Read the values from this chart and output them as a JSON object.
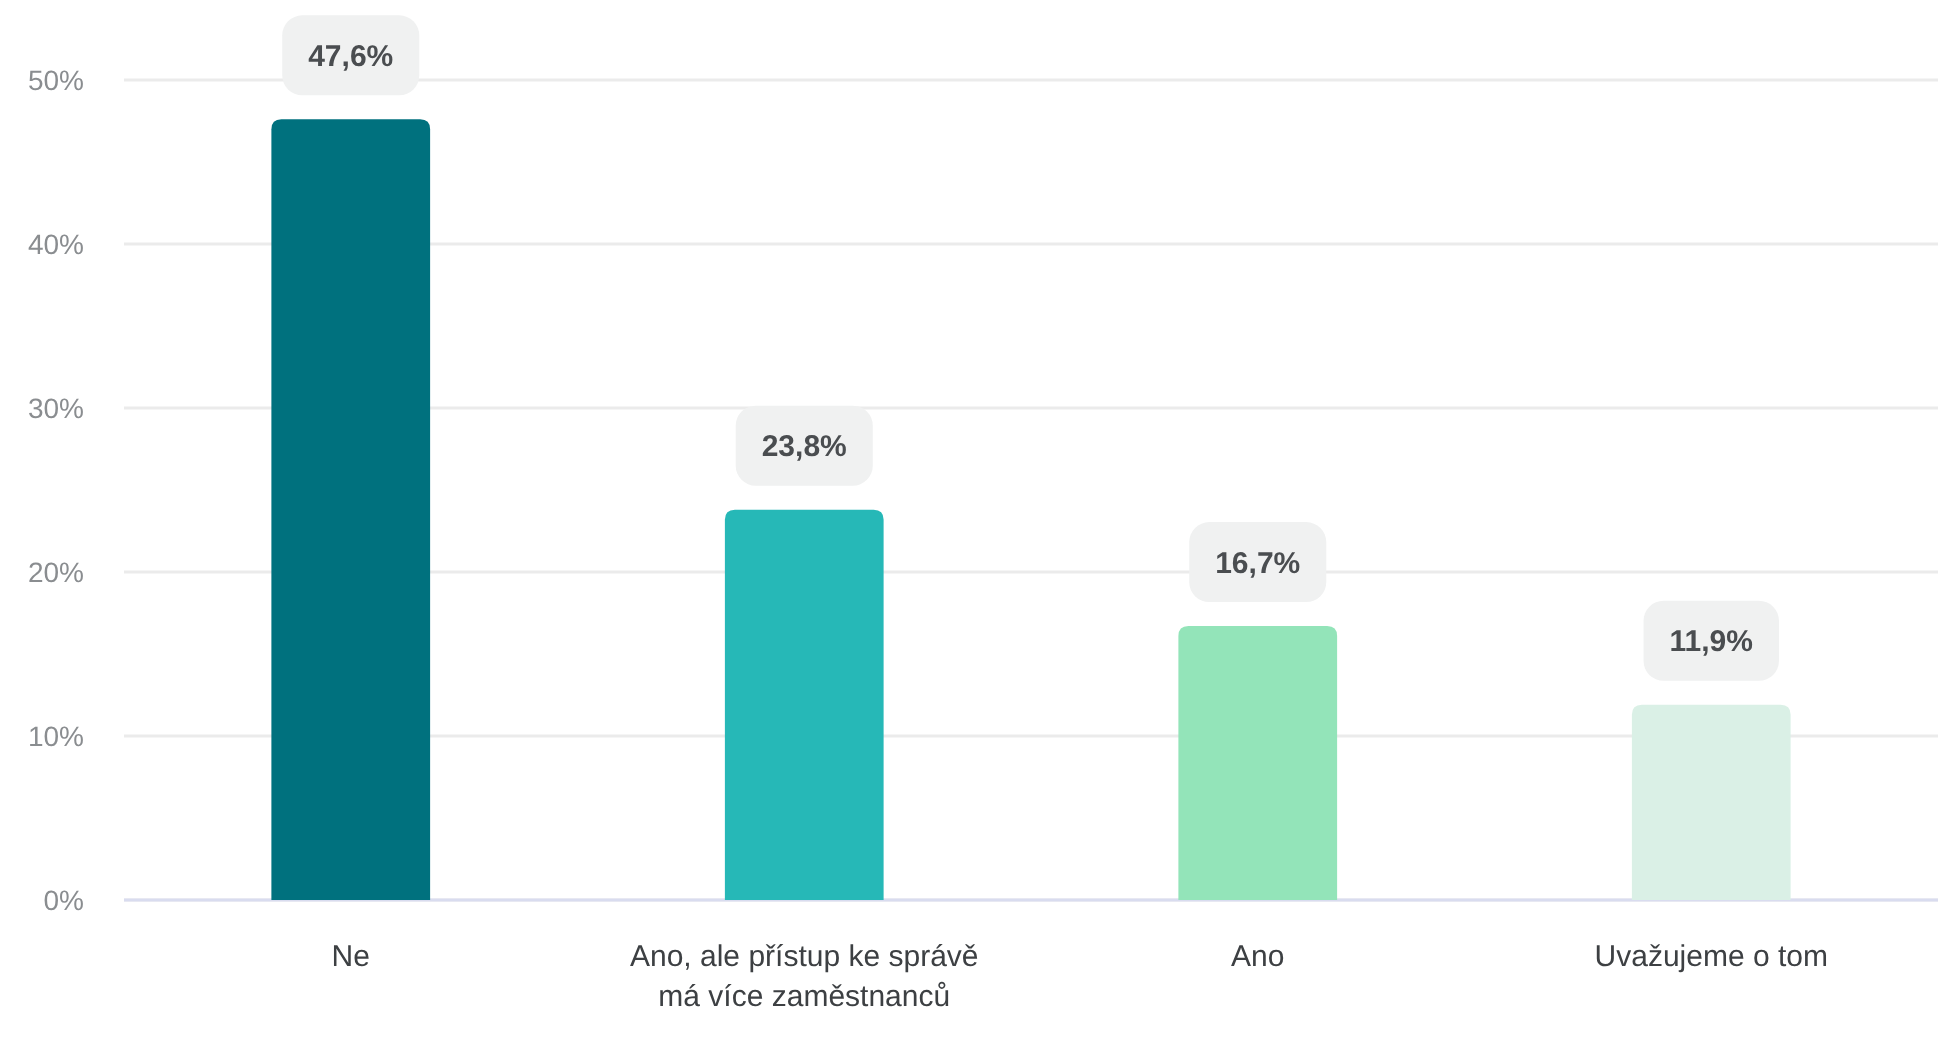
{
  "chart_data": {
    "type": "bar",
    "categories": [
      "Ne",
      "Ano, ale přístup ke správě má více zaměstnanců",
      "Ano",
      "Uvažujeme o tom"
    ],
    "values": [
      47.6,
      23.8,
      16.7,
      11.9
    ],
    "colors": [
      "#00717e",
      "#26b8b7",
      "#93e4b9",
      "#daf0e6"
    ],
    "value_labels": [
      "47,6%",
      "23,8%",
      "16,7%",
      "11,9%"
    ],
    "ylim": [
      0,
      50
    ],
    "yticks": [
      {
        "value": 0,
        "label": "0%"
      },
      {
        "value": 10,
        "label": "10%"
      },
      {
        "value": 20,
        "label": "20%"
      },
      {
        "value": 30,
        "label": "30%"
      },
      {
        "value": 40,
        "label": "40%"
      },
      {
        "value": 50,
        "label": "50%"
      }
    ],
    "grid": "y"
  }
}
